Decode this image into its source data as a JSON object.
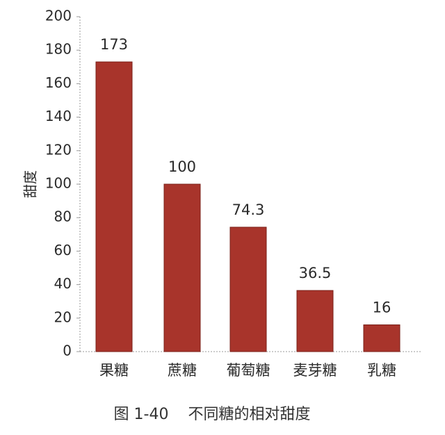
{
  "chart_data": {
    "type": "bar",
    "title": "图 1-40    不同糖的相对甜度",
    "xlabel": "",
    "ylabel": "甜度",
    "categories": [
      "果糖",
      "蔗糖",
      "葡萄糖",
      "麦芽糖",
      "乳糖"
    ],
    "values": [
      173,
      100,
      74.3,
      36.5,
      16
    ],
    "data_labels": [
      "173",
      "100",
      "74.3",
      "36.5",
      "16"
    ],
    "ylim": [
      0,
      200
    ],
    "yticks": [
      0,
      20,
      40,
      60,
      80,
      100,
      120,
      140,
      160,
      180,
      200
    ],
    "grid": false,
    "bar_color": "#a8342b"
  }
}
